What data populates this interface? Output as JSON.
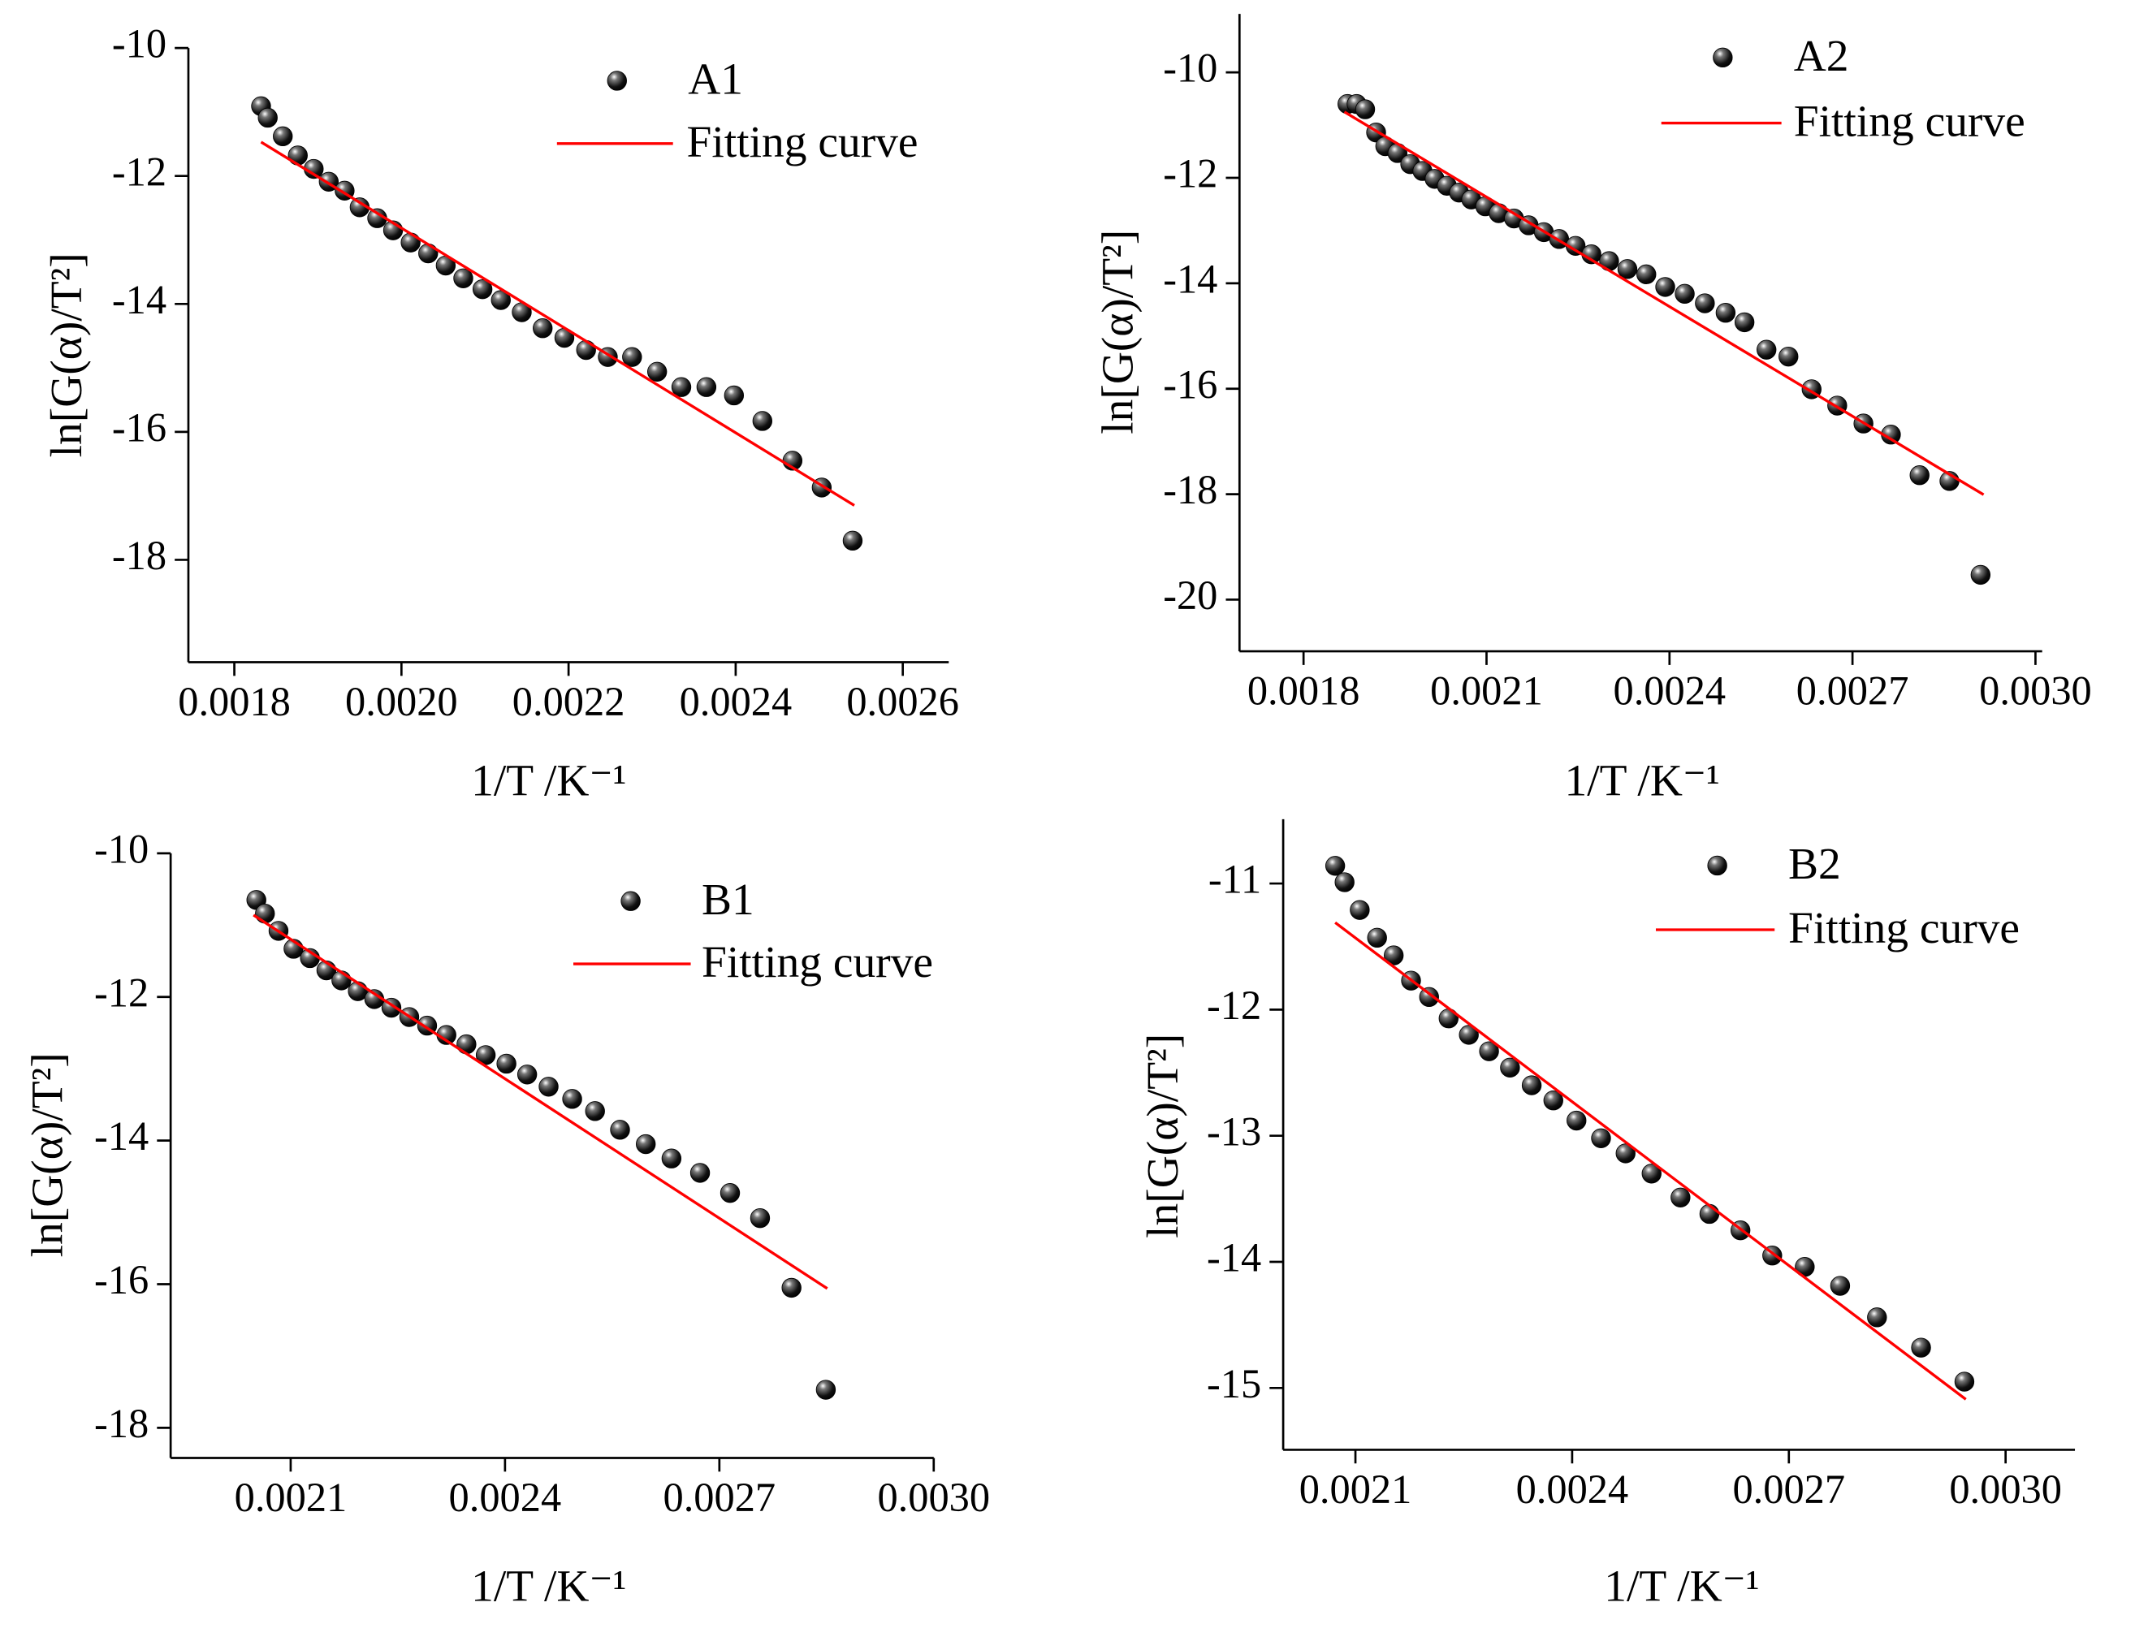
{
  "chart_data": [
    {
      "type": "scatter",
      "xlabel": "1/T /K⁻¹",
      "ylabel": "ln[G(α)/T²]",
      "xlim": [
        0.001745,
        0.002655
      ],
      "ylim": [
        -19.6,
        -10
      ],
      "xticks": [
        0.0018,
        {
          "value": 0.002,
          "label": "0.0020"
        },
        0.0022,
        0.0024,
        0.0026
      ],
      "yticks": [
        -10,
        -12,
        -14,
        -16,
        -18
      ],
      "series": [
        {
          "name": "A1",
          "color": "#000000",
          "x": [
            0.001832,
            0.00184,
            0.001858,
            0.001876,
            0.001895,
            0.001913,
            0.001932,
            0.00195,
            0.001971,
            0.00199,
            0.002011,
            0.002032,
            0.002053,
            0.002074,
            0.002097,
            0.002119,
            0.002144,
            0.002169,
            0.002195,
            0.002221,
            0.002247,
            0.002276,
            0.002306,
            0.002335,
            0.002365,
            0.002398,
            0.002432,
            0.002468,
            0.002503,
            0.00254
          ],
          "values": [
            -10.91,
            -11.09,
            -11.38,
            -11.68,
            -11.89,
            -12.09,
            -12.23,
            -12.49,
            -12.66,
            -12.85,
            -13.04,
            -13.21,
            -13.4,
            -13.6,
            -13.77,
            -13.94,
            -14.13,
            -14.38,
            -14.53,
            -14.72,
            -14.83,
            -14.83,
            -15.06,
            -15.3,
            -15.3,
            -15.43,
            -15.83,
            -16.45,
            -16.87,
            -17.7
          ]
        },
        {
          "name": "Fitting curve",
          "type": "line",
          "color": "#ff0000",
          "x": [
            0.001832,
            0.002542
          ],
          "values": [
            -11.47,
            -17.15
          ]
        }
      ]
    },
    {
      "type": "scatter",
      "xlabel": "1/T /K⁻¹",
      "ylabel": "ln[G(α)/T²]",
      "xlim": [
        0.001695,
        0.003011
      ],
      "ylim": [
        -20.98,
        -8.89
      ],
      "xticks": [
        0.0018,
        0.0021,
        0.0024,
        0.0027,
        {
          "value": 0.003,
          "label": "0.0030"
        }
      ],
      "yticks": [
        -10,
        -12,
        -14,
        -16,
        -18,
        -20
      ],
      "series": [
        {
          "name": "A2",
          "color": "#000000",
          "x": [
            0.001872,
            0.001887,
            0.001901,
            0.001919,
            0.001934,
            0.001954,
            0.001975,
            0.001995,
            0.002015,
            0.002035,
            0.002055,
            0.002075,
            0.002098,
            0.00212,
            0.002145,
            0.002169,
            0.002194,
            0.002219,
            0.002246,
            0.002272,
            0.002301,
            0.002331,
            0.002362,
            0.002393,
            0.002425,
            0.002458,
            0.002492,
            0.002523,
            0.002559,
            0.002595,
            0.002633,
            0.002675,
            0.002718,
            0.002763,
            0.00281,
            0.002859,
            0.00291
          ],
          "values": [
            -10.6,
            -10.6,
            -10.7,
            -11.14,
            -11.4,
            -11.53,
            -11.74,
            -11.87,
            -12.02,
            -12.15,
            -12.28,
            -12.41,
            -12.54,
            -12.67,
            -12.77,
            -12.9,
            -13.03,
            -13.16,
            -13.29,
            -13.45,
            -13.58,
            -13.73,
            -13.83,
            -14.07,
            -14.2,
            -14.38,
            -14.56,
            -14.74,
            -15.26,
            -15.39,
            -16.01,
            -16.32,
            -16.66,
            -16.87,
            -17.64,
            -17.75,
            -19.53
          ]
        },
        {
          "name": "Fitting curve",
          "type": "line",
          "color": "#ff0000",
          "x": [
            0.001867,
            0.002915
          ],
          "values": [
            -10.75,
            -18.01
          ]
        }
      ]
    },
    {
      "type": "scatter",
      "xlabel": "1/T /K⁻¹",
      "ylabel": "ln[G(α)/T²]",
      "xlim": [
        0.001932,
        0.003
      ],
      "ylim": [
        -18.42,
        -10
      ],
      "xticks": [
        0.0021,
        0.0024,
        0.0027,
        {
          "value": 0.003,
          "label": "0.0030"
        }
      ],
      "yticks": [
        -10,
        -12,
        -14,
        -16,
        -18
      ],
      "series": [
        {
          "name": "B1",
          "color": "#000000",
          "x": [
            0.002052,
            0.002064,
            0.002083,
            0.002104,
            0.002127,
            0.00215,
            0.002171,
            0.002194,
            0.002217,
            0.002241,
            0.002266,
            0.002291,
            0.002318,
            0.002346,
            0.002373,
            0.002402,
            0.002431,
            0.002461,
            0.002494,
            0.002526,
            0.002561,
            0.002597,
            0.002633,
            0.002673,
            0.002715,
            0.002757,
            0.002801,
            0.002849
          ],
          "values": [
            -10.65,
            -10.84,
            -11.08,
            -11.33,
            -11.46,
            -11.63,
            -11.77,
            -11.92,
            -12.03,
            -12.15,
            -12.28,
            -12.4,
            -12.53,
            -12.66,
            -12.81,
            -12.93,
            -13.08,
            -13.25,
            -13.42,
            -13.59,
            -13.85,
            -14.05,
            -14.25,
            -14.45,
            -14.73,
            -15.08,
            -16.05,
            -17.47
          ]
        },
        {
          "name": "Fitting curve",
          "type": "line",
          "color": "#ff0000",
          "x": [
            0.002048,
            0.002851
          ],
          "values": [
            -10.86,
            -16.06
          ]
        }
      ]
    },
    {
      "type": "scatter",
      "xlabel": "1/T /K⁻¹",
      "ylabel": "ln[G(α)/T²]",
      "xlim": [
        0.002,
        0.003096
      ],
      "ylim": [
        -15.49,
        -10.49
      ],
      "xticks": [
        0.0021,
        0.0024,
        0.0027,
        {
          "value": 0.003,
          "label": "0.0030"
        }
      ],
      "yticks": [
        -11,
        -12,
        -13,
        -14,
        -15
      ],
      "series": [
        {
          "name": "B2",
          "color": "#000000",
          "x": [
            0.002072,
            0.002085,
            0.002106,
            0.00213,
            0.002153,
            0.002177,
            0.002202,
            0.002229,
            0.002257,
            0.002285,
            0.002314,
            0.002344,
            0.002374,
            0.002406,
            0.00244,
            0.002474,
            0.00251,
            0.00255,
            0.00259,
            0.002633,
            0.002677,
            0.002722,
            0.002771,
            0.002822,
            0.002883,
            0.002943
          ],
          "values": [
            -10.86,
            -10.99,
            -11.21,
            -11.43,
            -11.57,
            -11.77,
            -11.9,
            -12.07,
            -12.2,
            -12.33,
            -12.46,
            -12.6,
            -12.72,
            -12.88,
            -13.02,
            -13.14,
            -13.3,
            -13.49,
            -13.62,
            -13.75,
            -13.95,
            -14.04,
            -14.19,
            -14.44,
            -14.68,
            -14.95
          ]
        },
        {
          "name": "Fitting curve",
          "type": "line",
          "color": "#ff0000",
          "x": [
            0.002072,
            0.002945
          ],
          "values": [
            -11.31,
            -15.09
          ]
        }
      ]
    }
  ]
}
